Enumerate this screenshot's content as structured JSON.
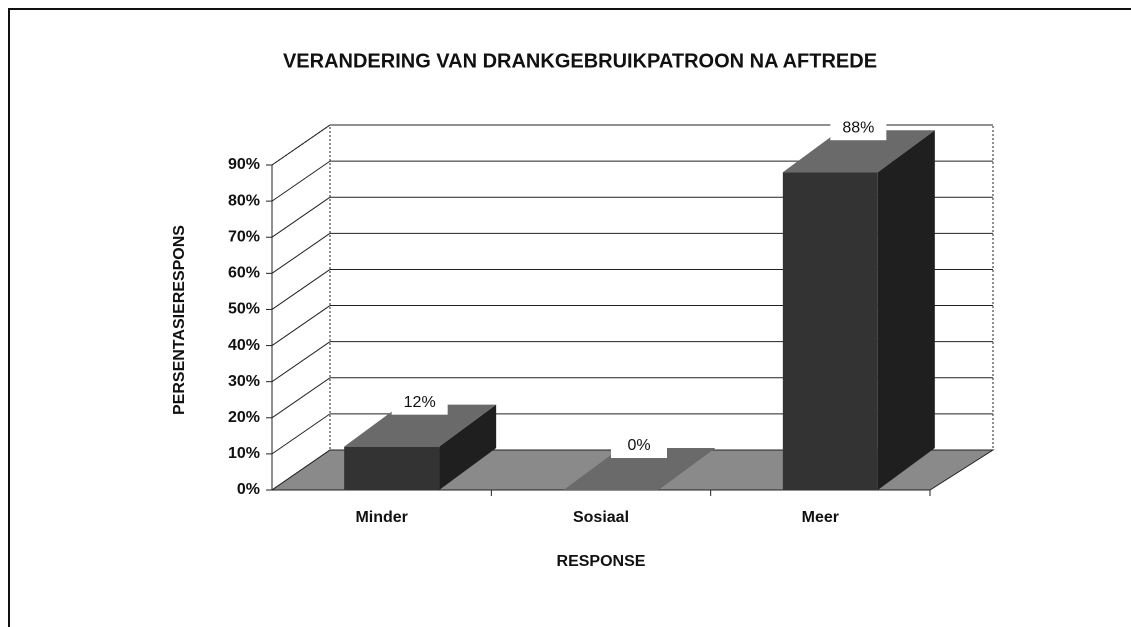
{
  "chart_data": {
    "type": "bar",
    "title": "VERANDERING VAN DRANKGEBRUIKPATROON NA AFTREDE",
    "categories": [
      "Minder",
      "Sosiaal",
      "Meer"
    ],
    "values": [
      12,
      0,
      88
    ],
    "value_labels": [
      "12%",
      "0%",
      "88%"
    ],
    "color": "#333333",
    "xlabel": "RESPONSE",
    "ylabel": "PERSENTASIERESPONS",
    "ylim": [
      0,
      90
    ],
    "yticks": [
      {
        "value": 0,
        "label": "0%"
      },
      {
        "value": 10,
        "label": "10%"
      },
      {
        "value": 20,
        "label": "20%"
      },
      {
        "value": 30,
        "label": "30%"
      },
      {
        "value": 40,
        "label": "40%"
      },
      {
        "value": 50,
        "label": "50%"
      },
      {
        "value": 60,
        "label": "60%"
      },
      {
        "value": 70,
        "label": "70%"
      },
      {
        "value": 80,
        "label": "80%"
      },
      {
        "value": 90,
        "label": "90%"
      }
    ],
    "grid": true
  }
}
